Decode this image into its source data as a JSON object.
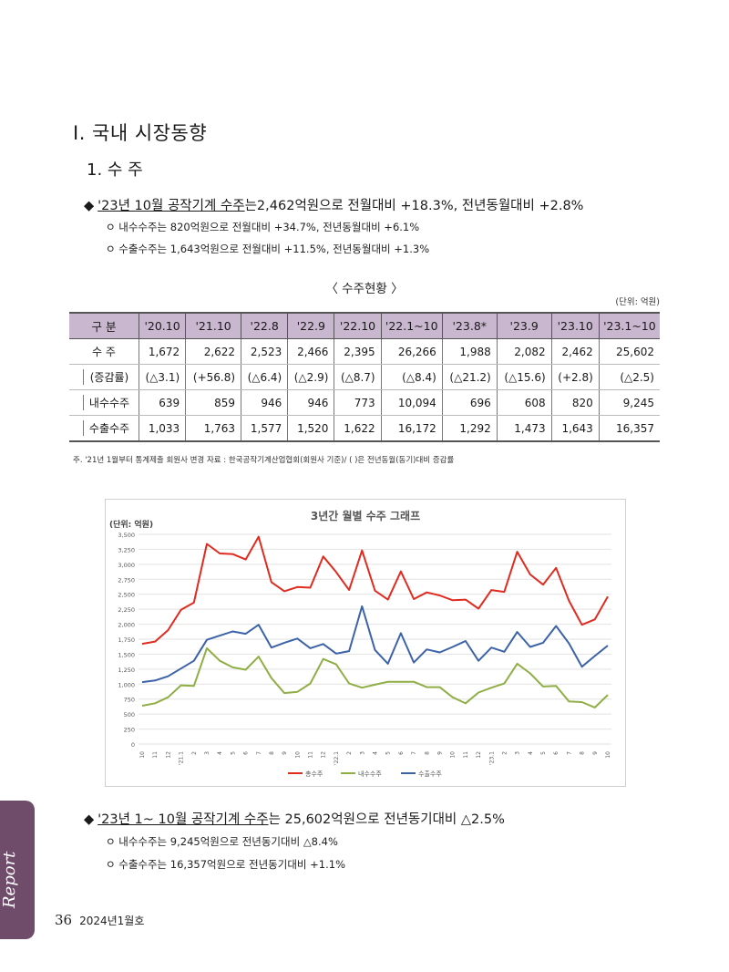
{
  "heading1": "Ⅰ. 국내 시장동향",
  "heading2": "1. 수 주",
  "bullet1": {
    "diamond": "◆",
    "underlined": "'23년 10월 공작기계 수주",
    "rest": "는2,462억원으로 전월대비 +18.3%, 전년동월대비 +2.8%",
    "subs": [
      "ㅇ 내수수주는 820억원으로 전월대비 +34.7%, 전년동월대비 +6.1%",
      "ㅇ 수출수주는 1,643억원으로 전월대비 +11.5%, 전년동월대비 +1.3%"
    ]
  },
  "table": {
    "title": "〈 수주현황 〉",
    "unit": "(단위: 억원)",
    "headers": [
      "구 분",
      "'20.10",
      "'21.10",
      "'22.8",
      "'22.9",
      "'22.10",
      "'22.1~10",
      "'23.8*",
      "'23.9",
      "'23.10",
      "'23.1~10"
    ],
    "rows": [
      {
        "label": "수 주",
        "cells": [
          "1,672",
          "2,622",
          "2,523",
          "2,466",
          "2,395",
          "26,266",
          "1,988",
          "2,082",
          "2,462",
          "25,602"
        ]
      },
      {
        "label": "(증감률)",
        "cells": [
          "(△3.1)",
          "(+56.8)",
          "(△6.4)",
          "(△2.9)",
          "(△8.7)",
          "(△8.4)",
          "(△21.2)",
          "(△15.6)",
          "(+2.8)",
          "(△2.5)"
        ]
      },
      {
        "label": "내수수주",
        "cells": [
          "639",
          "859",
          "946",
          "946",
          "773",
          "10,094",
          "696",
          "608",
          "820",
          "9,245"
        ]
      },
      {
        "label": "수출수주",
        "cells": [
          "1,033",
          "1,763",
          "1,577",
          "1,520",
          "1,622",
          "16,172",
          "1,292",
          "1,473",
          "1,643",
          "16,357"
        ]
      }
    ],
    "note": "주. '21년 1월부터 통계제출 회원사 변경          자료 : 한국공작기계산업협회(회원사 기준)/ (  )은 전년동월(동기)대비 증감률"
  },
  "chart_data": {
    "type": "line",
    "title": "3년간 월별 수주 그래프",
    "ylabel": "(단위: 억원)",
    "ylim": [
      0,
      3500
    ],
    "yticks": [
      "0",
      "250",
      "500",
      "750",
      "1,000",
      "1,250",
      "1,500",
      "1,750",
      "2,000",
      "2,250",
      "2,500",
      "2,750",
      "3,000",
      "3,250",
      "3,500"
    ],
    "grid": true,
    "legend": "bottom",
    "categories": [
      "10",
      "11",
      "12",
      "'21.1",
      "2",
      "3",
      "4",
      "5",
      "6",
      "7",
      "8",
      "9",
      "10",
      "11",
      "12",
      "'22.1",
      "2",
      "3",
      "4",
      "5",
      "6",
      "7",
      "8",
      "9",
      "10",
      "11",
      "12",
      "'23.1",
      "2",
      "3",
      "4",
      "5",
      "6",
      "7",
      "8",
      "9",
      "10"
    ],
    "series": [
      {
        "name": "총수주",
        "color": "#e02b20",
        "values": [
          1672,
          1710,
          1900,
          2240,
          2360,
          3340,
          3180,
          3170,
          3080,
          3460,
          2700,
          2550,
          2620,
          2610,
          3130,
          2870,
          2570,
          3230,
          2560,
          2410,
          2880,
          2420,
          2530,
          2480,
          2400,
          2410,
          2260,
          2570,
          2540,
          3210,
          2830,
          2660,
          2940,
          2390,
          1990,
          2080,
          2462
        ]
      },
      {
        "name": "내수수주",
        "color": "#8fae45",
        "values": [
          639,
          680,
          780,
          980,
          970,
          1600,
          1390,
          1280,
          1240,
          1460,
          1100,
          850,
          870,
          1010,
          1420,
          1330,
          1010,
          940,
          990,
          1040,
          1040,
          1040,
          950,
          950,
          780,
          680,
          860,
          940,
          1010,
          1340,
          1180,
          960,
          970,
          710,
          700,
          610,
          820
        ]
      },
      {
        "name": "수출수주",
        "color": "#3c62a8",
        "values": [
          1033,
          1060,
          1130,
          1260,
          1390,
          1740,
          1810,
          1880,
          1840,
          1990,
          1610,
          1690,
          1760,
          1600,
          1670,
          1510,
          1550,
          2300,
          1570,
          1340,
          1850,
          1360,
          1580,
          1530,
          1620,
          1720,
          1390,
          1610,
          1540,
          1870,
          1620,
          1690,
          1970,
          1680,
          1290,
          1470,
          1643
        ]
      }
    ]
  },
  "bullet2": {
    "diamond": "◆",
    "underlined": "'23년 1~ 10월 공작기계 수주",
    "rest": "는 25,602억원으로 전년동기대비 △2.5%",
    "subs": [
      "ㅇ 내수수주는 9,245억원으로 전년동기대비 △8.4%",
      "ㅇ 수출수주는 16,357억원으로 전년동기대비 +1.1%"
    ]
  },
  "side_tab": "Report",
  "footer": {
    "page": "36",
    "issue": "2024년1월호"
  }
}
